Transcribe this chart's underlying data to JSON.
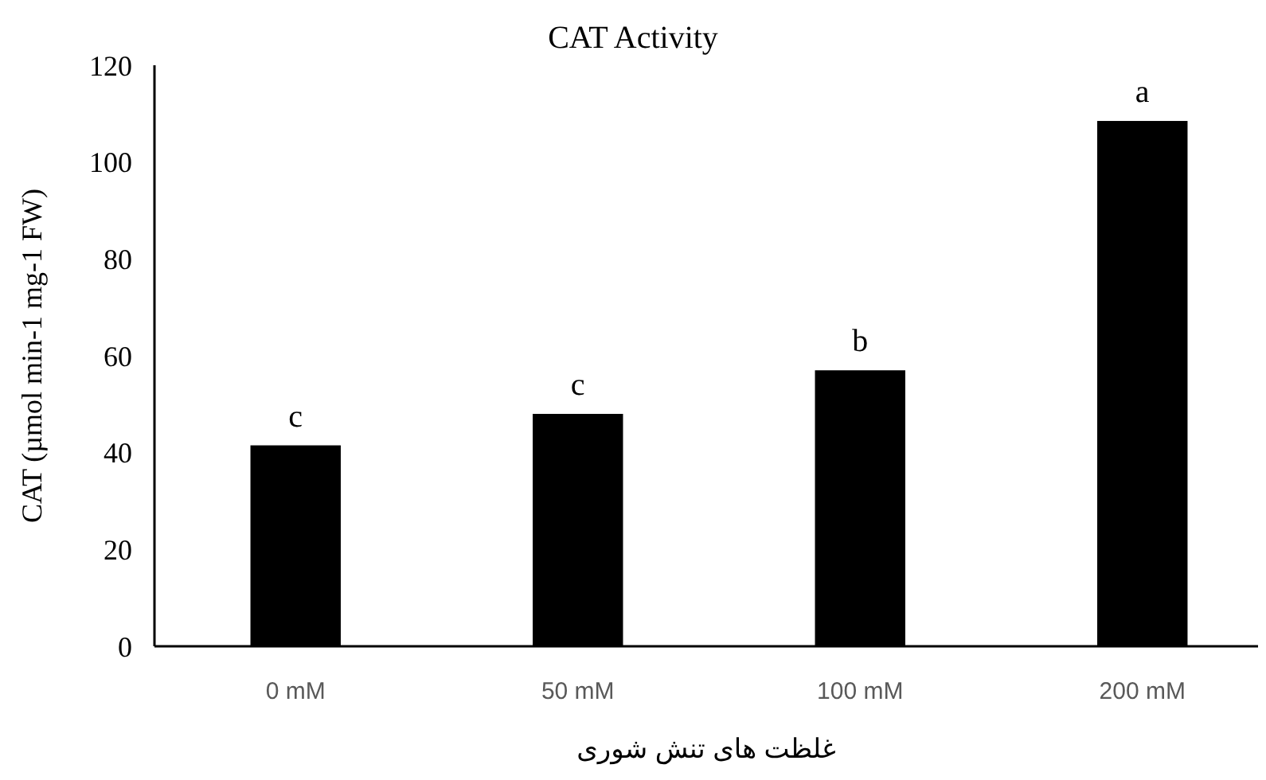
{
  "chart_data": {
    "type": "bar",
    "title": "CAT Activity",
    "xlabel": "غلظت های تنش شوری",
    "ylabel": "CAT (µmol min-1  mg-1 FW)",
    "categories": [
      "0 mM",
      "50 mM",
      "100 mM",
      "200 mM"
    ],
    "values": [
      41.5,
      48,
      57,
      108.5
    ],
    "color": "#000000",
    "ylim": [
      0,
      120
    ],
    "yticks": [
      0,
      20,
      40,
      60,
      80,
      100,
      120
    ],
    "annotations": [
      {
        "text": "c",
        "x": "0 mM",
        "y": 41.5
      },
      {
        "text": "c",
        "x": "50 mM",
        "y": 48
      },
      {
        "text": "b",
        "x": "100 mM",
        "y": 57
      },
      {
        "text": "a",
        "x": "200 mM",
        "y": 108.5
      }
    ],
    "grid": false
  }
}
